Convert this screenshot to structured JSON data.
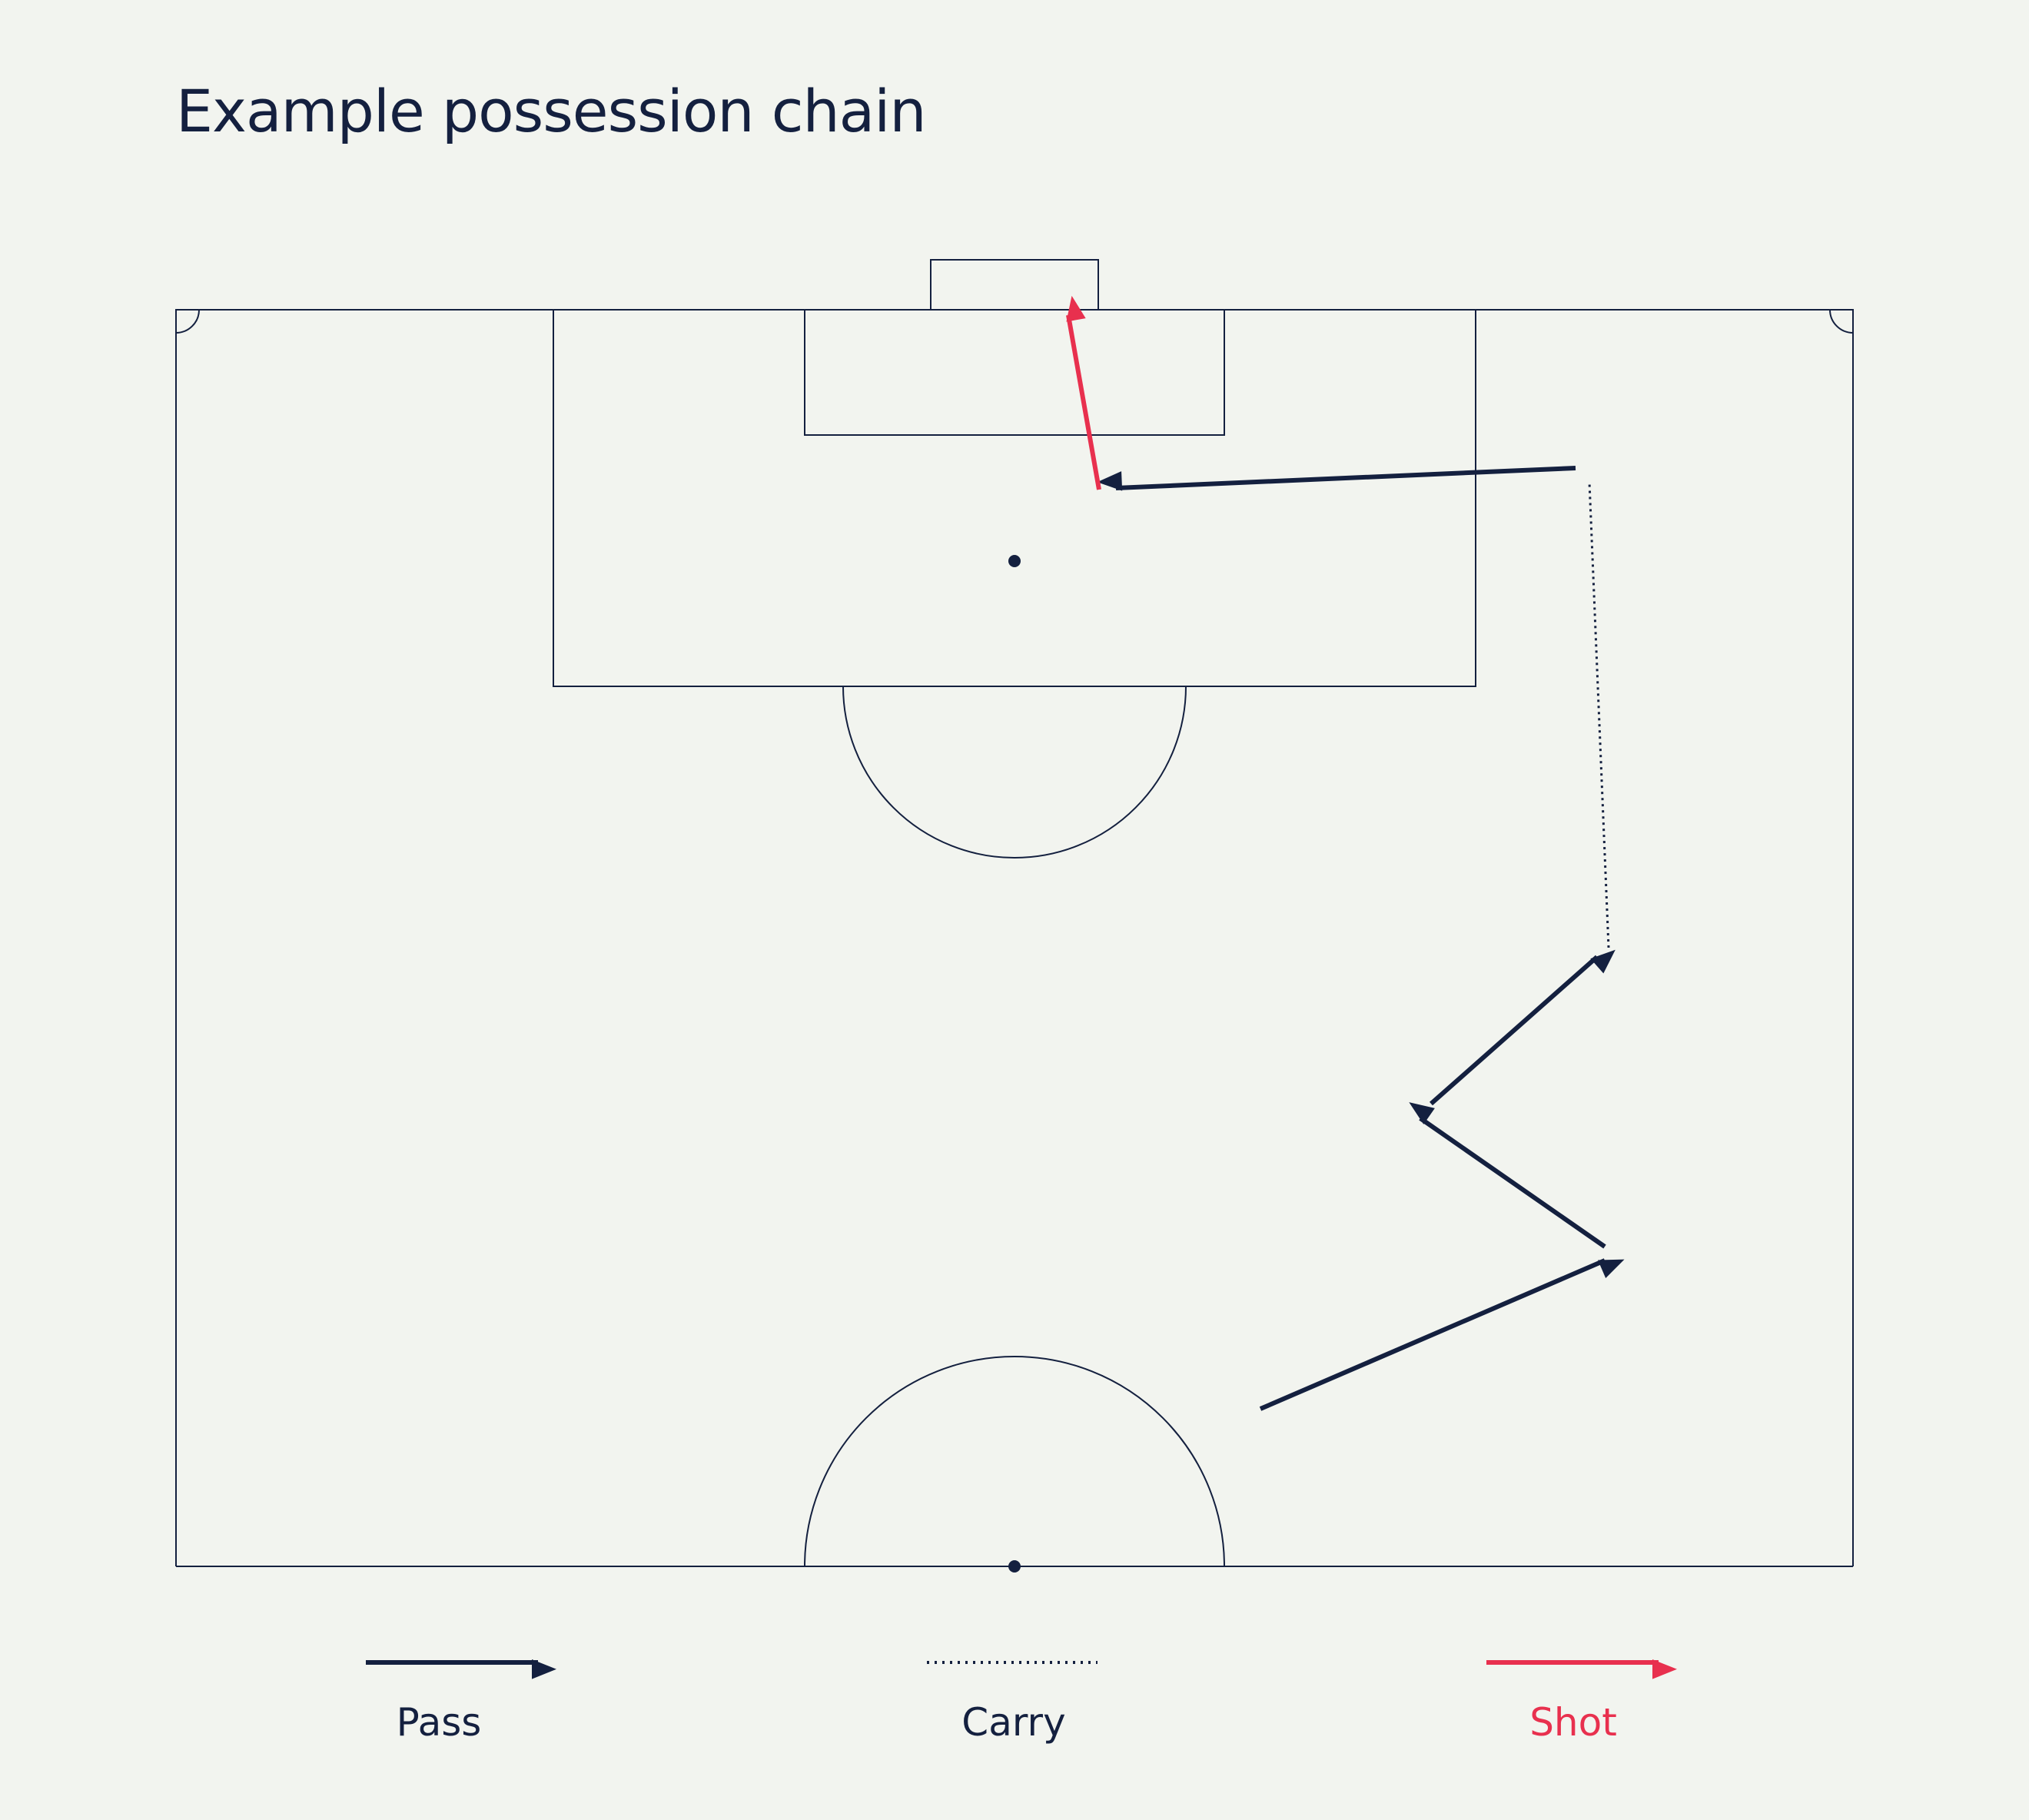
{
  "title": "Example possession chain",
  "colors": {
    "background": "#f2f4ef",
    "ink": "#14203f",
    "shot": "#e8304e"
  },
  "legend": {
    "pass": "Pass",
    "carry": "Carry",
    "shot": "Shot"
  },
  "events": [
    {
      "type": "pass",
      "from": [
        1640,
        1833
      ],
      "to": [
        2088,
        1640
      ]
    },
    {
      "type": "pass",
      "from": [
        2088,
        1622
      ],
      "to": [
        1848,
        1455
      ]
    },
    {
      "type": "pass",
      "from": [
        1862,
        1436
      ],
      "to": [
        2078,
        1245
      ]
    },
    {
      "type": "carry",
      "from": [
        2093,
        1233
      ],
      "to": [
        2068,
        627
      ]
    },
    {
      "type": "pass",
      "from": [
        2050,
        609
      ],
      "to": [
        1452,
        635
      ]
    },
    {
      "type": "shot",
      "from": [
        1430,
        637
      ],
      "to": [
        1390,
        410
      ]
    }
  ]
}
